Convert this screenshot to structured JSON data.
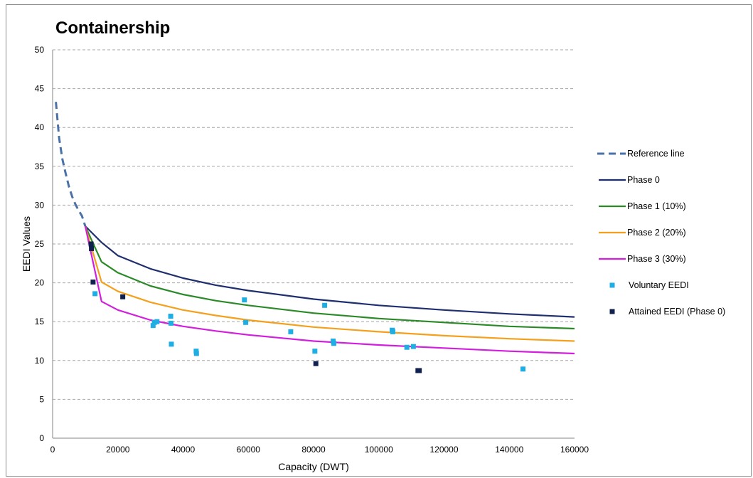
{
  "chart_data": {
    "type": "line",
    "title": "Containership",
    "xlabel": "Capacity (DWT)",
    "ylabel": "EEDI Values",
    "xlim": [
      0,
      160000
    ],
    "ylim": [
      0,
      50
    ],
    "x_ticks": [
      "0",
      "20000",
      "40000",
      "60000",
      "80000",
      "100000",
      "120000",
      "140000",
      "160000"
    ],
    "y_ticks": [
      "0",
      "5",
      "10",
      "15",
      "20",
      "25",
      "30",
      "35",
      "40",
      "45",
      "50"
    ],
    "grid": "horizontal dashed",
    "legend_position": "right",
    "series": [
      {
        "name": "Reference line",
        "kind": "line",
        "style": "dashed",
        "color": "#4a72a8",
        "x": [
          1000,
          2000,
          3000,
          4000,
          5000,
          6000,
          7000,
          8000,
          9000,
          10000
        ],
        "y": [
          43.3,
          38.6,
          35.9,
          34.1,
          32.4,
          31.1,
          30.1,
          29.3,
          28.6,
          27.3
        ]
      },
      {
        "name": "Phase 0",
        "kind": "line",
        "style": "solid",
        "color": "#1f2f6e",
        "x": [
          10000,
          15000,
          20000,
          30000,
          40000,
          50000,
          60000,
          80000,
          100000,
          120000,
          140000,
          160000
        ],
        "y": [
          27.3,
          25.2,
          23.5,
          21.8,
          20.6,
          19.7,
          19.0,
          17.9,
          17.1,
          16.5,
          16.0,
          15.6
        ]
      },
      {
        "name": "Phase 1 (10%)",
        "kind": "line",
        "style": "solid",
        "color": "#2b8a28",
        "x": [
          10000,
          15000,
          20000,
          30000,
          40000,
          50000,
          60000,
          80000,
          100000,
          120000,
          140000,
          160000
        ],
        "y": [
          27.3,
          22.7,
          21.3,
          19.6,
          18.5,
          17.7,
          17.1,
          16.1,
          15.4,
          14.9,
          14.4,
          14.1
        ]
      },
      {
        "name": "Phase 2 (20%)",
        "kind": "line",
        "style": "solid",
        "color": "#f4a01c",
        "x": [
          10000,
          15000,
          20000,
          30000,
          40000,
          50000,
          60000,
          80000,
          100000,
          120000,
          140000,
          160000
        ],
        "y": [
          27.3,
          20.1,
          18.9,
          17.5,
          16.5,
          15.8,
          15.2,
          14.3,
          13.7,
          13.2,
          12.8,
          12.5
        ]
      },
      {
        "name": "Phase 3 (30%)",
        "kind": "line",
        "style": "solid",
        "color": "#d21edd",
        "x": [
          10000,
          15000,
          20000,
          30000,
          40000,
          50000,
          60000,
          80000,
          100000,
          120000,
          140000,
          160000
        ],
        "y": [
          27.3,
          17.6,
          16.5,
          15.2,
          14.4,
          13.8,
          13.3,
          12.5,
          12.0,
          11.6,
          11.2,
          10.9
        ]
      },
      {
        "name": "Voluntary EEDI",
        "kind": "scatter",
        "color": "#1eaee4",
        "x": [
          13000,
          30800,
          31200,
          32000,
          36200,
          36300,
          36400,
          44000,
          44100,
          58800,
          59200,
          73000,
          80400,
          83400,
          86000,
          86200,
          104100,
          104300,
          108600,
          110600,
          144200
        ],
        "y": [
          18.6,
          14.5,
          14.9,
          15.0,
          15.7,
          14.8,
          12.1,
          11.2,
          10.9,
          17.8,
          14.9,
          13.7,
          11.2,
          17.1,
          12.5,
          12.2,
          13.9,
          13.7,
          11.7,
          11.8,
          8.9
        ]
      },
      {
        "name": "Attained EEDI (Phase 0)",
        "kind": "scatter",
        "color": "#10214f",
        "x": [
          11800,
          11900,
          12400,
          21500,
          80700,
          112000,
          112400
        ],
        "y": [
          25.0,
          24.4,
          20.1,
          18.2,
          9.6,
          8.7,
          8.7
        ]
      }
    ]
  }
}
